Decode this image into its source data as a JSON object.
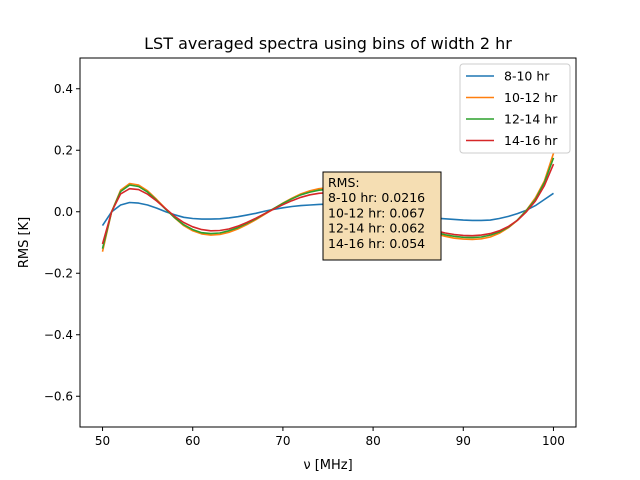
{
  "chart_data": {
    "type": "line",
    "title": "LST averaged spectra using bins of width 2 hr",
    "xlabel": "ν [MHz]",
    "ylabel": "RMS [K]",
    "xlim": [
      47.5,
      102.5
    ],
    "ylim": [
      -0.7,
      0.5
    ],
    "xticks": [
      50,
      60,
      70,
      80,
      90,
      100
    ],
    "yticks": [
      -0.6,
      -0.4,
      -0.2,
      0.0,
      0.2,
      0.4
    ],
    "ytick_labels": [
      "−0.6",
      "−0.4",
      "−0.2",
      "0.0",
      "0.2",
      "0.4"
    ],
    "grid": false,
    "legend_position": "top-right",
    "x": [
      50,
      51,
      52,
      53,
      54,
      55,
      56,
      57,
      58,
      59,
      60,
      61,
      62,
      63,
      64,
      65,
      66,
      67,
      68,
      69,
      70,
      71,
      72,
      73,
      74,
      75,
      76,
      77,
      78,
      79,
      80,
      81,
      82,
      83,
      84,
      85,
      86,
      87,
      88,
      89,
      90,
      91,
      92,
      93,
      94,
      95,
      96,
      97,
      98,
      99,
      100
    ],
    "series": [
      {
        "name": "8-10 hr",
        "color": "#1f77b4",
        "values": [
          -0.045,
          0.0,
          0.022,
          0.03,
          0.028,
          0.022,
          0.012,
          0.0,
          -0.01,
          -0.018,
          -0.022,
          -0.024,
          -0.024,
          -0.023,
          -0.02,
          -0.016,
          -0.011,
          -0.005,
          0.002,
          0.008,
          0.013,
          0.017,
          0.02,
          0.022,
          0.024,
          0.025,
          0.025,
          0.024,
          0.022,
          0.018,
          0.013,
          0.007,
          0.0,
          -0.006,
          -0.011,
          -0.015,
          -0.018,
          -0.021,
          -0.023,
          -0.025,
          -0.027,
          -0.028,
          -0.028,
          -0.027,
          -0.022,
          -0.015,
          -0.006,
          0.005,
          0.02,
          0.04,
          0.06
        ]
      },
      {
        "name": "10-12 hr",
        "color": "#ff7f0e",
        "values": [
          -0.13,
          0.0,
          0.07,
          0.092,
          0.087,
          0.068,
          0.04,
          0.01,
          -0.02,
          -0.045,
          -0.062,
          -0.072,
          -0.076,
          -0.074,
          -0.067,
          -0.056,
          -0.042,
          -0.026,
          -0.008,
          0.01,
          0.028,
          0.044,
          0.058,
          0.068,
          0.075,
          0.078,
          0.077,
          0.072,
          0.063,
          0.05,
          0.034,
          0.016,
          -0.002,
          -0.02,
          -0.036,
          -0.05,
          -0.062,
          -0.072,
          -0.08,
          -0.086,
          -0.089,
          -0.09,
          -0.088,
          -0.082,
          -0.07,
          -0.052,
          -0.028,
          0.005,
          0.045,
          0.1,
          0.19
        ]
      },
      {
        "name": "12-14 hr",
        "color": "#2ca02c",
        "values": [
          -0.12,
          0.0,
          0.066,
          0.087,
          0.082,
          0.064,
          0.037,
          0.008,
          -0.019,
          -0.042,
          -0.058,
          -0.068,
          -0.071,
          -0.069,
          -0.062,
          -0.052,
          -0.038,
          -0.023,
          -0.006,
          0.011,
          0.027,
          0.042,
          0.055,
          0.064,
          0.07,
          0.073,
          0.072,
          0.067,
          0.059,
          0.047,
          0.032,
          0.015,
          -0.002,
          -0.019,
          -0.034,
          -0.047,
          -0.058,
          -0.067,
          -0.075,
          -0.08,
          -0.083,
          -0.084,
          -0.082,
          -0.076,
          -0.066,
          -0.05,
          -0.027,
          0.004,
          0.04,
          0.095,
          0.175
        ]
      },
      {
        "name": "14-16 hr",
        "color": "#d62728",
        "values": [
          -0.105,
          0.0,
          0.058,
          0.075,
          0.072,
          0.057,
          0.035,
          0.01,
          -0.015,
          -0.035,
          -0.049,
          -0.058,
          -0.062,
          -0.061,
          -0.056,
          -0.047,
          -0.035,
          -0.021,
          -0.006,
          0.009,
          0.023,
          0.036,
          0.047,
          0.055,
          0.06,
          0.062,
          0.061,
          0.057,
          0.05,
          0.04,
          0.027,
          0.013,
          -0.002,
          -0.017,
          -0.031,
          -0.043,
          -0.053,
          -0.062,
          -0.069,
          -0.074,
          -0.077,
          -0.078,
          -0.076,
          -0.071,
          -0.062,
          -0.048,
          -0.028,
          0.0,
          0.035,
          0.085,
          0.155
        ]
      }
    ],
    "annotation": {
      "lines": [
        "RMS:",
        "8-10 hr: 0.0216",
        "10-12 hr: 0.067",
        "12-14 hr: 0.062",
        "14-16 hr: 0.054"
      ],
      "box_color": "#f5deb3"
    }
  }
}
